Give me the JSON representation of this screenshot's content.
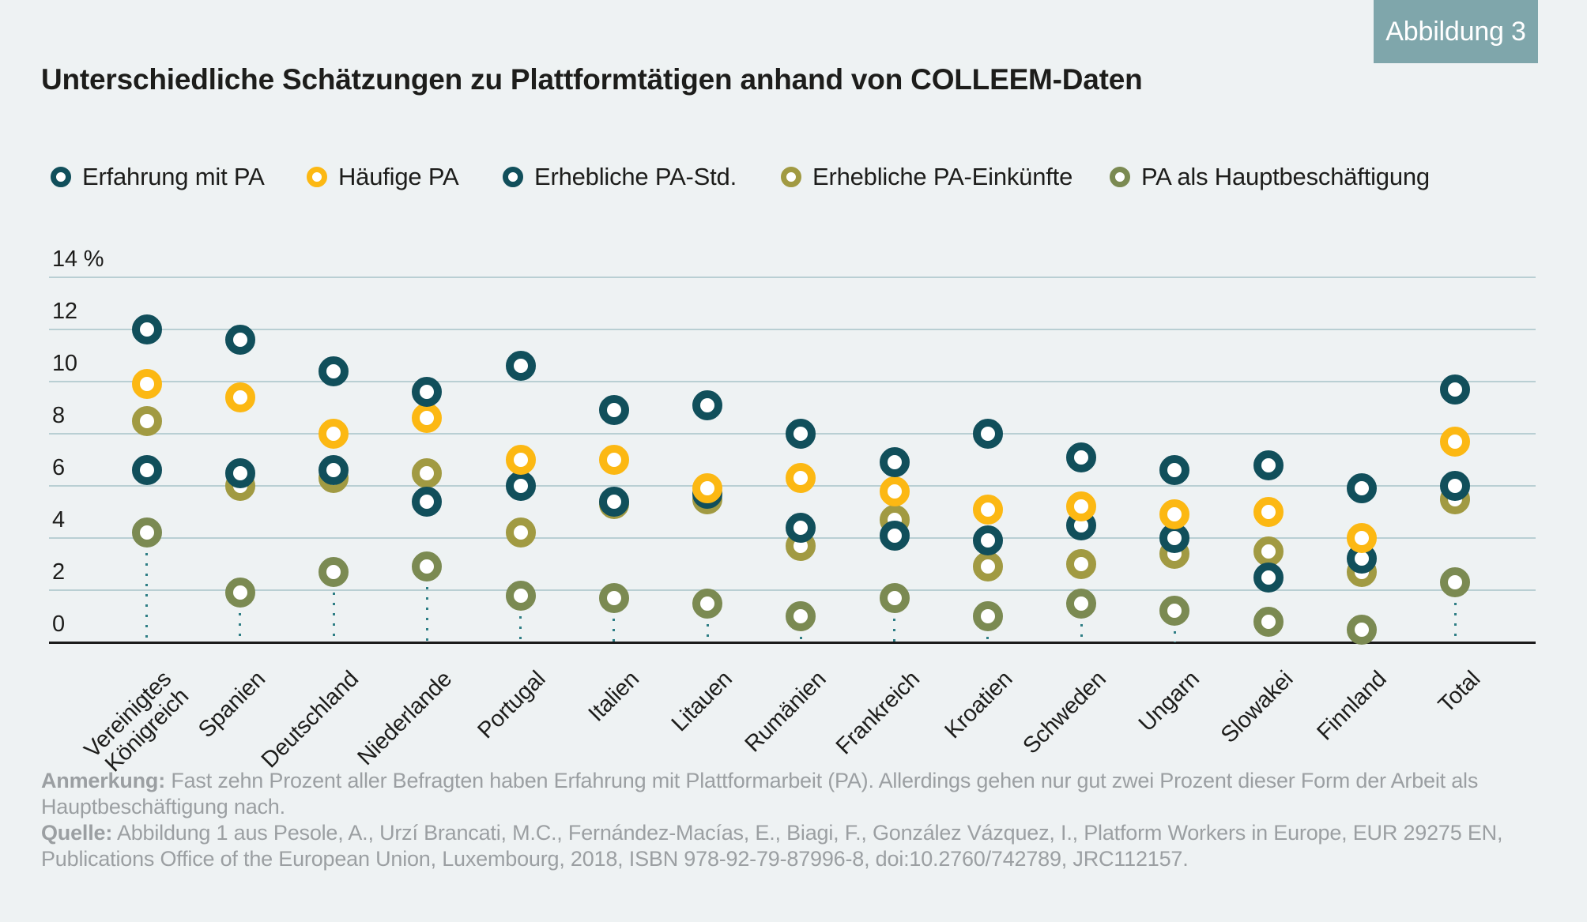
{
  "badge": {
    "label": "Abbildung 3",
    "bg_color": "#7fa6ab",
    "text_color": "#ffffff"
  },
  "title": "Unterschiedliche Schätzungen zu Plattformtätigen anhand von COLLEEM-Daten",
  "legend": [
    {
      "label": "Erfahrung mit PA",
      "color": "#114f5b"
    },
    {
      "label": "Häufige PA",
      "color": "#fcb813"
    },
    {
      "label": "Erhebliche PA-Std.",
      "color": "#114f5b"
    },
    {
      "label": "Erhebliche PA-Einkünfte",
      "color": "#a19a42"
    },
    {
      "label": "PA als Hauptbeschäftigung",
      "color": "#7b8a52"
    }
  ],
  "chart_data": {
    "type": "scatter",
    "title": "Unterschiedliche Schätzungen zu Plattformtätigen anhand von COLLEEM-Daten",
    "unit": "%",
    "ylim": [
      0,
      14
    ],
    "grid": true,
    "y_ticks": [
      {
        "value": 14,
        "label": "14 %"
      },
      {
        "value": 12,
        "label": "12"
      },
      {
        "value": 10,
        "label": "10"
      },
      {
        "value": 8,
        "label": "8"
      },
      {
        "value": 6,
        "label": "6"
      },
      {
        "value": 4,
        "label": "4"
      },
      {
        "value": 2,
        "label": "2"
      },
      {
        "value": 0,
        "label": "0"
      }
    ],
    "categories": [
      "Vereinigtes\nKönigreich",
      "Spanien",
      "Deutschland",
      "Niederlande",
      "Portugal",
      "Italien",
      "Litauen",
      "Rumänien",
      "Frankreich",
      "Kroatien",
      "Schweden",
      "Ungarn",
      "Slowakei",
      "Finnland",
      "Total"
    ],
    "series": [
      {
        "name": "Erfahrung mit PA",
        "color": "#114f5b",
        "values": [
          12.0,
          11.6,
          10.4,
          9.6,
          10.6,
          8.9,
          9.1,
          8.0,
          6.9,
          8.0,
          7.1,
          6.6,
          6.8,
          5.9,
          9.7
        ]
      },
      {
        "name": "Häufige PA",
        "color": "#fcb813",
        "values": [
          9.9,
          9.4,
          8.0,
          8.6,
          7.0,
          7.0,
          5.9,
          6.3,
          5.8,
          5.1,
          5.2,
          4.9,
          5.0,
          4.0,
          7.7
        ]
      },
      {
        "name": "Erhebliche PA-Std.",
        "color": "#114f5b",
        "values": [
          6.6,
          6.5,
          6.6,
          5.4,
          6.0,
          5.4,
          5.7,
          4.4,
          4.1,
          3.9,
          4.5,
          4.0,
          2.5,
          3.2,
          6.0
        ]
      },
      {
        "name": "Erhebliche PA-Einkünfte",
        "color": "#a19a42",
        "values": [
          8.5,
          6.0,
          6.3,
          6.5,
          4.2,
          5.3,
          5.5,
          3.7,
          4.7,
          2.9,
          3.0,
          3.4,
          3.5,
          2.7,
          5.5
        ]
      },
      {
        "name": "PA als Hauptbeschäftigung",
        "color": "#7b8a52",
        "values": [
          4.2,
          1.9,
          2.7,
          2.9,
          1.8,
          1.7,
          1.5,
          1.0,
          1.7,
          1.0,
          1.5,
          1.2,
          0.8,
          0.5,
          2.3
        ]
      }
    ],
    "colors": {
      "background": "#eef2f3",
      "band": "#d6e0e2",
      "grid": "#b9cfd3",
      "axis": "#1b1b1b",
      "dotted_leader": "#2e7e85",
      "text": "#1d1d1b"
    }
  },
  "notes": {
    "anmerkung_label": "Anmerkung:",
    "anmerkung_text": "Fast zehn Prozent aller Befragten haben Erfahrung mit Plattformarbeit (PA). Allerdings gehen nur gut zwei Prozent dieser Form der Arbeit als Hauptbeschäftigung nach.",
    "quelle_label": "Quelle:",
    "quelle_text": "Abbildung 1 aus Pesole, A., Urzí Brancati, M.C., Fernández-Macías, E., Biagi, F., González Vázquez, I., Platform Workers in Europe, EUR 29275 EN, Publications Office of the European Union, Luxembourg, 2018, ISBN 978-92-79-87996-8, doi:10.2760/742789, JRC112157."
  }
}
